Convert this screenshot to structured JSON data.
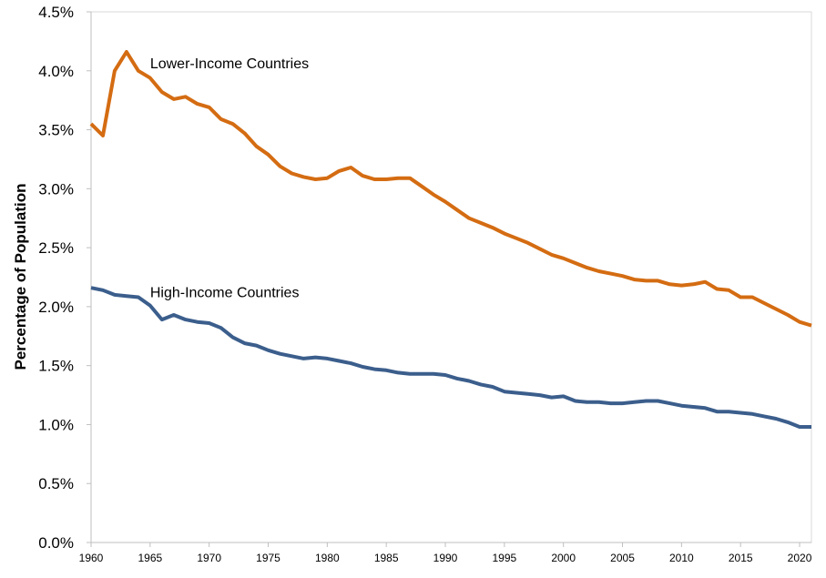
{
  "chart_data": {
    "type": "line",
    "title": "",
    "xlabel": "",
    "ylabel": "Percentage of Population",
    "xlim": [
      1960,
      2021
    ],
    "ylim": [
      0,
      4.5
    ],
    "y_ticks": [
      {
        "value": 0.0,
        "label": "0.0%"
      },
      {
        "value": 0.5,
        "label": "0.5%"
      },
      {
        "value": 1.0,
        "label": "1.0%"
      },
      {
        "value": 1.5,
        "label": "1.5%"
      },
      {
        "value": 2.0,
        "label": "2.0%"
      },
      {
        "value": 2.5,
        "label": "2.5%"
      },
      {
        "value": 3.0,
        "label": "3.0%"
      },
      {
        "value": 3.5,
        "label": "3.5%"
      },
      {
        "value": 4.0,
        "label": "4.0%"
      },
      {
        "value": 4.5,
        "label": "4.5%"
      }
    ],
    "x_ticks": [
      {
        "value": 1960,
        "label": "1960"
      },
      {
        "value": 1965,
        "label": "1965"
      },
      {
        "value": 1970,
        "label": "1970"
      },
      {
        "value": 1975,
        "label": "1975"
      },
      {
        "value": 1980,
        "label": "1980"
      },
      {
        "value": 1985,
        "label": "1985"
      },
      {
        "value": 1990,
        "label": "1990"
      },
      {
        "value": 1995,
        "label": "1995"
      },
      {
        "value": 2000,
        "label": "2000"
      },
      {
        "value": 2005,
        "label": "2005"
      },
      {
        "value": 2010,
        "label": "2010"
      },
      {
        "value": 2015,
        "label": "2015"
      },
      {
        "value": 2020,
        "label": "2020"
      }
    ],
    "grid": false,
    "x": [
      1960,
      1961,
      1962,
      1963,
      1964,
      1965,
      1966,
      1967,
      1968,
      1969,
      1970,
      1971,
      1972,
      1973,
      1974,
      1975,
      1976,
      1977,
      1978,
      1979,
      1980,
      1981,
      1982,
      1983,
      1984,
      1985,
      1986,
      1987,
      1988,
      1989,
      1990,
      1991,
      1992,
      1993,
      1994,
      1995,
      1996,
      1997,
      1998,
      1999,
      2000,
      2001,
      2002,
      2003,
      2004,
      2005,
      2006,
      2007,
      2008,
      2009,
      2010,
      2011,
      2012,
      2013,
      2014,
      2015,
      2016,
      2017,
      2018,
      2019,
      2020,
      2021
    ],
    "series": [
      {
        "name": "Lower-Income Countries",
        "color": "#D46C12",
        "values": [
          3.55,
          3.45,
          4.0,
          4.16,
          4.0,
          3.94,
          3.82,
          3.76,
          3.78,
          3.72,
          3.69,
          3.59,
          3.55,
          3.47,
          3.36,
          3.29,
          3.19,
          3.13,
          3.1,
          3.08,
          3.09,
          3.15,
          3.18,
          3.11,
          3.08,
          3.08,
          3.09,
          3.09,
          3.02,
          2.95,
          2.89,
          2.82,
          2.75,
          2.71,
          2.67,
          2.62,
          2.58,
          2.54,
          2.49,
          2.44,
          2.41,
          2.37,
          2.33,
          2.3,
          2.28,
          2.26,
          2.23,
          2.22,
          2.22,
          2.19,
          2.18,
          2.19,
          2.21,
          2.15,
          2.14,
          2.08,
          2.08,
          2.03,
          1.98,
          1.93,
          1.87,
          1.84
        ],
        "label": {
          "text": "Lower-Income Countries",
          "anchor_x": 1965.0,
          "anchor_y": 4.02
        }
      },
      {
        "name": "High-Income Countries",
        "color": "#3B5E8C",
        "values": [
          2.16,
          2.14,
          2.1,
          2.09,
          2.08,
          2.01,
          1.89,
          1.93,
          1.89,
          1.87,
          1.86,
          1.82,
          1.74,
          1.69,
          1.67,
          1.63,
          1.6,
          1.58,
          1.56,
          1.57,
          1.56,
          1.54,
          1.52,
          1.49,
          1.47,
          1.46,
          1.44,
          1.43,
          1.43,
          1.43,
          1.42,
          1.39,
          1.37,
          1.34,
          1.32,
          1.28,
          1.27,
          1.26,
          1.25,
          1.23,
          1.24,
          1.2,
          1.19,
          1.19,
          1.18,
          1.18,
          1.19,
          1.2,
          1.2,
          1.18,
          1.16,
          1.15,
          1.14,
          1.11,
          1.11,
          1.1,
          1.09,
          1.07,
          1.05,
          1.02,
          0.98,
          0.98
        ],
        "label": {
          "text": "High-Income Countries",
          "anchor_x": 1965.0,
          "anchor_y": 2.08
        }
      }
    ]
  }
}
